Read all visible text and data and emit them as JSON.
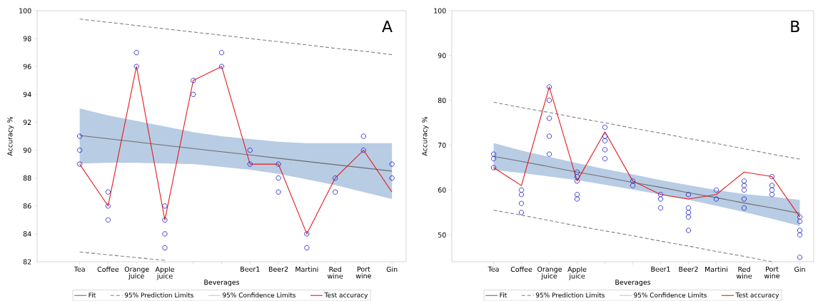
{
  "chart_data": [
    {
      "type": "line",
      "annotations": [
        "A",
        "95% Confidence Limits"
      ],
      "xlabel": "Beverages",
      "ylabel": "Accuracy %",
      "categories": [
        "Tea",
        "Coffee",
        "Orange juice",
        "Apple juice",
        null,
        null,
        "Beer1",
        "Beer2",
        "Martini",
        "Red wine",
        "Port wine",
        "Gin"
      ],
      "ylim": [
        82,
        100
      ],
      "yticks": [
        82,
        84,
        86,
        88,
        90,
        92,
        94,
        96,
        98,
        100
      ],
      "grid": false,
      "legend": "bottom",
      "series": [
        {
          "name": "Fit",
          "type": "line",
          "color": "#6e6e6e",
          "line_style": "solid",
          "marker": "none",
          "values": [
            91.05,
            90.82,
            90.59,
            90.35,
            90.12,
            89.89,
            89.66,
            89.42,
            89.19,
            88.96,
            88.73,
            88.5
          ],
          "lower": [
            89.05,
            89.1,
            89.1,
            89.05,
            89.0,
            88.8,
            88.6,
            88.3,
            87.9,
            87.5,
            87.0,
            86.5
          ],
          "upper": [
            93.0,
            92.5,
            92.1,
            91.7,
            91.3,
            91.0,
            90.8,
            90.6,
            90.5,
            90.5,
            90.5,
            90.5
          ]
        },
        {
          "name": "95% Prediction Limits",
          "type": "line",
          "color": "#808080",
          "line_style": "dashed",
          "marker": "none",
          "values": [
            99.4,
            99.17,
            98.94,
            98.7,
            98.47,
            98.24,
            98.0,
            97.78,
            97.55,
            97.3,
            97.1,
            96.85
          ]
        },
        {
          "type": "line",
          "color": "#808080",
          "line_style": "dashed",
          "marker": "none",
          "values": [
            82.7,
            82.5,
            82.3,
            82.1,
            null,
            null,
            null,
            null,
            null,
            null,
            null,
            null
          ]
        },
        {
          "name": "Test accuracy",
          "type": "line",
          "color": "#e41a1c",
          "line_style": "solid",
          "marker": "none",
          "values": [
            89,
            86,
            96,
            85,
            95,
            96,
            89,
            89,
            84,
            88,
            90,
            87
          ]
        },
        {
          "type": "scatter",
          "color": "#2b2bc8",
          "marker": "circle",
          "values": [
            91,
            87,
            97,
            86,
            95,
            97,
            90,
            89,
            84,
            88,
            91,
            89
          ]
        },
        {
          "type": "scatter",
          "color": "#2b2bc8",
          "marker": "circle",
          "values": [
            90,
            86,
            96,
            85,
            94,
            96,
            89,
            88,
            83,
            87,
            90,
            88
          ]
        },
        {
          "type": "scatter",
          "color": "#2b2bc8",
          "marker": "circle",
          "values": [
            89,
            85,
            null,
            84,
            null,
            null,
            null,
            87,
            null,
            null,
            null,
            null
          ]
        },
        {
          "type": "scatter",
          "color": "#2b2bc8",
          "marker": "circle",
          "values": [
            null,
            null,
            null,
            83,
            null,
            null,
            null,
            null,
            null,
            null,
            null,
            null
          ]
        }
      ]
    },
    {
      "type": "line",
      "annotations": [
        "B",
        "95% Confidence Limits"
      ],
      "xlabel": "Beverages",
      "ylabel": "Accuracy %",
      "categories": [
        "Tea",
        "Coffee",
        "Orange juice",
        "Apple juice",
        null,
        null,
        "Beer1",
        "Beer2",
        "Martini",
        "Red wine",
        "Port wine",
        "Gin"
      ],
      "ylim": [
        44,
        100
      ],
      "yticks": [
        50,
        60,
        70,
        80,
        90,
        100
      ],
      "grid": false,
      "legend": "bottom",
      "series": [
        {
          "name": "Fit",
          "type": "line",
          "color": "#6e6e6e",
          "line_style": "solid",
          "marker": "none",
          "values": [
            67.5,
            66.4,
            65.2,
            64.0,
            62.9,
            61.7,
            60.6,
            59.4,
            58.3,
            57.1,
            56.0,
            54.8
          ],
          "lower": [
            64.5,
            63.8,
            63.0,
            62.2,
            61.2,
            60.1,
            59.0,
            57.8,
            56.5,
            55.1,
            53.6,
            52.0
          ],
          "upper": [
            70.5,
            68.8,
            67.4,
            66.0,
            64.7,
            63.5,
            62.2,
            61.1,
            60.0,
            59.1,
            58.5,
            57.8
          ]
        },
        {
          "name": "95% Prediction Limits",
          "type": "line",
          "color": "#808080",
          "line_style": "dashed",
          "marker": "none",
          "values": [
            79.6,
            78.4,
            77.3,
            76.1,
            75.0,
            73.8,
            72.7,
            71.5,
            70.4,
            69.2,
            68.0,
            66.9
          ]
        },
        {
          "type": "line",
          "color": "#808080",
          "line_style": "dashed",
          "marker": "none",
          "values": [
            55.5,
            54.4,
            53.2,
            52.0,
            50.9,
            49.8,
            48.6,
            47.5,
            46.3,
            45.2,
            44.0,
            null
          ]
        },
        {
          "name": "Test accuracy",
          "type": "line",
          "color": "#e41a1c",
          "line_style": "solid",
          "marker": "none",
          "values": [
            65,
            61,
            83,
            62,
            73,
            62,
            59,
            58,
            59,
            64,
            63,
            54
          ]
        },
        {
          "type": "scatter",
          "color": "#2b2bc8",
          "marker": "circle",
          "values": [
            68,
            60,
            83,
            64,
            74,
            62,
            59,
            59,
            60,
            62,
            63,
            54
          ]
        },
        {
          "type": "scatter",
          "color": "#2b2bc8",
          "marker": "circle",
          "values": [
            67,
            59,
            80,
            63,
            72,
            61,
            58,
            56,
            58,
            61,
            61,
            53
          ]
        },
        {
          "type": "scatter",
          "color": "#2b2bc8",
          "marker": "circle",
          "values": [
            65,
            57,
            76,
            62,
            71,
            null,
            56,
            55,
            null,
            60,
            60,
            51
          ]
        },
        {
          "type": "scatter",
          "color": "#2b2bc8",
          "marker": "circle",
          "values": [
            null,
            55,
            72,
            59,
            69,
            null,
            null,
            54,
            null,
            58,
            59,
            50
          ]
        },
        {
          "type": "scatter",
          "color": "#2b2bc8",
          "marker": "circle",
          "values": [
            null,
            null,
            68,
            58,
            67,
            null,
            null,
            51,
            null,
            56,
            null,
            45
          ]
        }
      ]
    }
  ]
}
